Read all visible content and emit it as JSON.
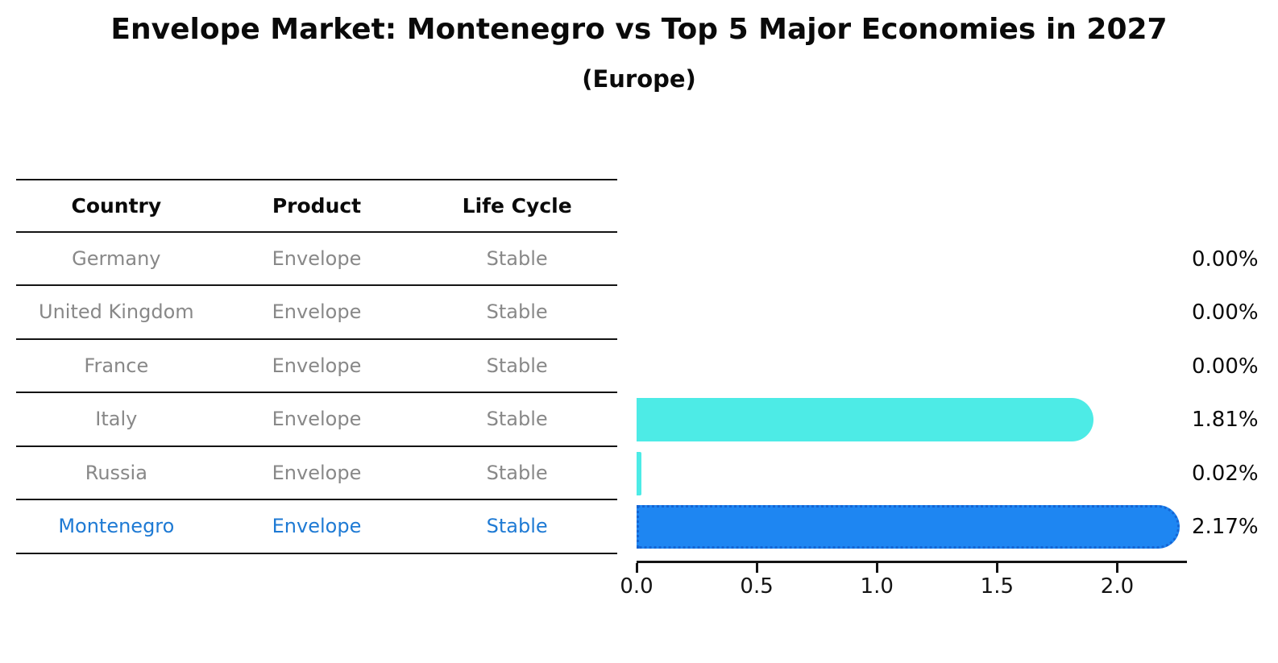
{
  "chart_data": {
    "type": "bar",
    "orientation": "horizontal",
    "title": "Envelope Market: Montenegro vs Top 5 Major Economies in 2027",
    "subtitle": "(Europe)",
    "categories": [
      "Germany",
      "United Kingdom",
      "France",
      "Italy",
      "Russia",
      "Montenegro"
    ],
    "values": [
      0.0,
      0.0,
      0.0,
      1.81,
      0.02,
      2.17
    ],
    "value_labels": [
      "0.00%",
      "0.00%",
      "0.00%",
      "1.81%",
      "0.02%",
      "2.17%"
    ],
    "xticks": [
      "0.0",
      "0.5",
      "1.0",
      "1.5",
      "2.0"
    ],
    "xtick_values": [
      0,
      0.5,
      1,
      1.5,
      2
    ],
    "xlim": [
      0,
      2.28
    ],
    "grid": false,
    "legend": false,
    "highlight_index": 5,
    "highlight_category": "Montenegro"
  },
  "table": {
    "headers": [
      "Country",
      "Product",
      "Life Cycle"
    ],
    "rows": [
      {
        "country": "Germany",
        "product": "Envelope",
        "life_cycle": "Stable",
        "highlight": false
      },
      {
        "country": "United Kingdom",
        "product": "Envelope",
        "life_cycle": "Stable",
        "highlight": false
      },
      {
        "country": "France",
        "product": "Envelope",
        "life_cycle": "Stable",
        "highlight": false
      },
      {
        "country": "Italy",
        "product": "Envelope",
        "life_cycle": "Stable",
        "highlight": false
      },
      {
        "country": "Russia",
        "product": "Envelope",
        "life_cycle": "Stable",
        "highlight": false
      },
      {
        "country": "Montenegro",
        "product": "Envelope",
        "life_cycle": "Stable",
        "highlight": true
      }
    ]
  },
  "colors": {
    "background": "#ffffff",
    "bar_default": "#4DEBE6",
    "bar_highlight": "#1E86F2",
    "bar_highlight_border": "#1565D4",
    "table_text": "#888888",
    "table_highlight_text": "#1E7AD4",
    "heading_text": "#0A0A0A",
    "axis": "#141414"
  }
}
